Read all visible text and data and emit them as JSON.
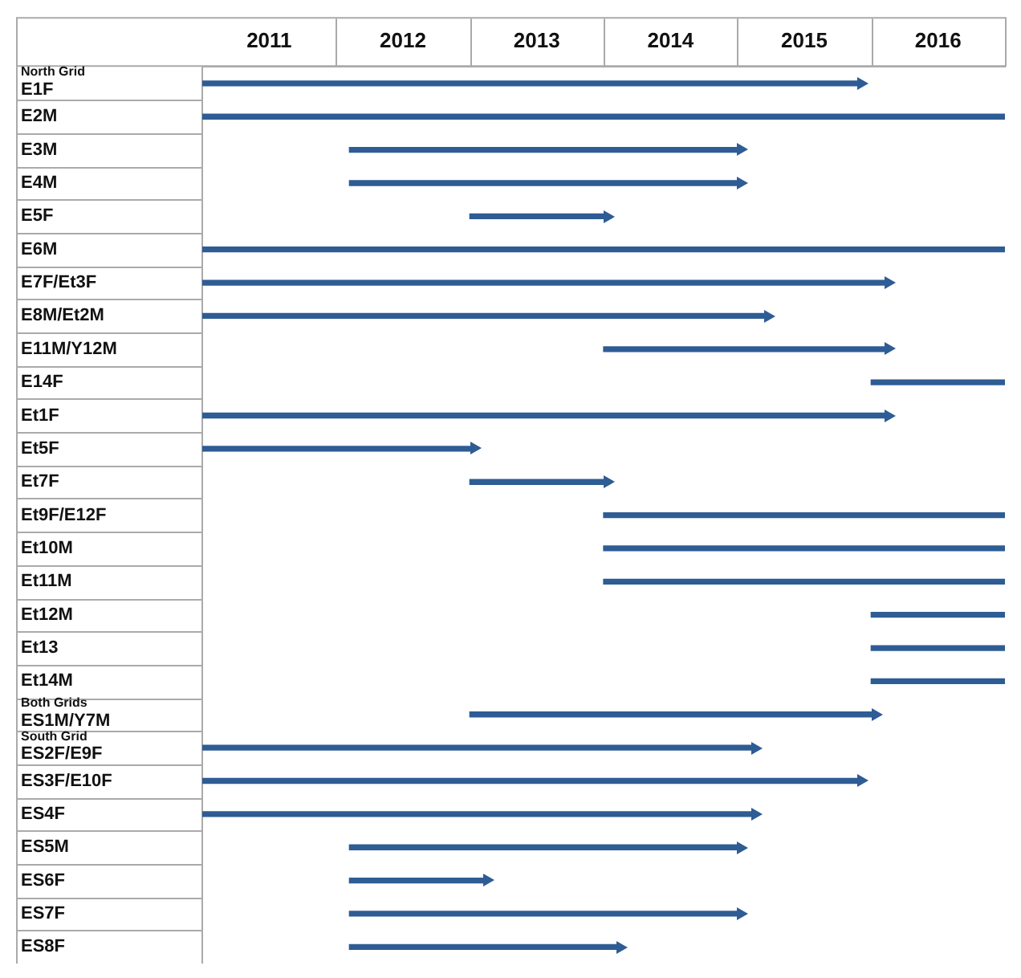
{
  "chart_data": {
    "type": "bar",
    "orientation": "horizontal",
    "categories": [
      "North Grid\nE1F",
      "E2M",
      "E3M",
      "E4M",
      "E5F",
      "E6M",
      "E7F/Et3F",
      "E8M/Et2M",
      "E11M/Y12M",
      "E14F",
      "Et1F",
      "Et5F",
      "Et7F",
      "Et9F/E12F",
      "Et10M",
      "Et11M",
      "Et12M",
      "Et13",
      "Et14M",
      "Both Grids\nES1M/Y7M",
      "South Grid\nES2F/E9F",
      "ES3F/E10F",
      "ES4F",
      "ES5M",
      "ES6F",
      "ES7F",
      "ES8F"
    ],
    "base": [
      2011,
      2011,
      2012.1,
      2012.1,
      2013,
      2011,
      2011,
      2011,
      2014,
      2016,
      2011,
      2011,
      2013,
      2014,
      2014,
      2014,
      2016,
      2016,
      2016,
      2013,
      2011,
      2011,
      2011,
      2012.1,
      2012.1,
      2012.1,
      2012.1
    ],
    "values": [
      4.9,
      6,
      2.9,
      2.9,
      1,
      6,
      5.1,
      4.2,
      2.1,
      1,
      5.1,
      2,
      1,
      3,
      3,
      3,
      1,
      1,
      1,
      3,
      4.1,
      4.9,
      4.1,
      2.9,
      1,
      2.9,
      2
    ],
    "color": "#2e5c94",
    "xlim": [
      2011,
      2017
    ],
    "xticks": [
      {
        "value": 2011.5,
        "label": "2011"
      },
      {
        "value": 2012.5,
        "label": "2012"
      },
      {
        "value": 2013.5,
        "label": "2013"
      },
      {
        "value": 2014.5,
        "label": "2014"
      },
      {
        "value": 2015.5,
        "label": "2015"
      },
      {
        "value": 2016.5,
        "label": "2016"
      }
    ]
  }
}
